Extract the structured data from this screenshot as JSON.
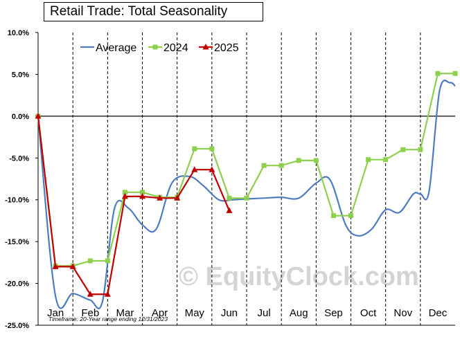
{
  "chart_data": {
    "type": "line",
    "title": "Retail Trade: Total Seasonality",
    "xlabel": "",
    "ylabel": "",
    "ylim": [
      -25,
      10
    ],
    "yticks": [
      "10.0%",
      "5.0%",
      "0.0%",
      "-5.0%",
      "-10.0%",
      "-15.0%",
      "-20.0%",
      "-25.0%"
    ],
    "ytick_values": [
      10,
      5,
      0,
      -5,
      -10,
      -15,
      -20,
      -25
    ],
    "categories": [
      "Jan",
      "Feb",
      "Mar",
      "Apr",
      "May",
      "Jun",
      "Jul",
      "Aug",
      "Sep",
      "Oct",
      "Nov",
      "Dec"
    ],
    "grid": "vertical dashed at month boundaries; solid zero line",
    "legend": "top-left",
    "footnote": "Timeframe: 20-Year range ending 12/31/2023",
    "watermark": "© EquityClock.com",
    "series": [
      {
        "name": "Average",
        "color": "#4f7cbf",
        "marker": "none",
        "x": [
          0,
          0.5,
          1.0,
          1.5,
          1.85,
          2.2,
          2.6,
          3.0,
          3.4,
          3.85,
          4.35,
          4.75,
          5.2,
          5.6,
          6.0,
          6.5,
          7.0,
          7.5,
          8.0,
          8.4,
          8.85,
          9.2,
          9.6,
          10.0,
          10.4,
          10.8,
          11.0,
          11.25,
          11.55,
          11.85,
          12.0
        ],
        "values": [
          0,
          -21.5,
          -21.2,
          -22.0,
          -22.2,
          -11.0,
          -11.0,
          -13.0,
          -13.5,
          -8.0,
          -7.2,
          -8.3,
          -10.0,
          -10.0,
          -9.9,
          -9.8,
          -9.7,
          -9.8,
          -8.0,
          -7.6,
          -13.0,
          -14.3,
          -13.5,
          -11.2,
          -11.5,
          -9.3,
          -9.3,
          -9.0,
          3.0,
          4.0,
          3.6
        ]
      },
      {
        "name": "2024",
        "color": "#8dd04b",
        "marker": "square",
        "x": [
          0,
          0.5,
          1.0,
          1.5,
          2.0,
          2.5,
          3.0,
          3.5,
          4.0,
          4.5,
          5.0,
          5.5,
          6.0,
          6.5,
          7.0,
          7.5,
          8.0,
          8.5,
          9.0,
          9.5,
          10.0,
          10.5,
          11.0,
          11.5,
          12.0
        ],
        "values": [
          0,
          -17.9,
          -17.9,
          -17.3,
          -17.3,
          -9.1,
          -9.1,
          -9.7,
          -9.7,
          -3.9,
          -3.9,
          -9.8,
          -9.8,
          -5.9,
          -5.9,
          -5.3,
          -5.3,
          -11.9,
          -11.9,
          -5.2,
          -5.2,
          -4.0,
          -4.0,
          5.1,
          5.1
        ]
      },
      {
        "name": "2025",
        "color": "#c00000",
        "marker": "triangle",
        "x": [
          0,
          0.5,
          1.0,
          1.5,
          2.0,
          2.5,
          3.0,
          3.5,
          4.0,
          4.5,
          5.0,
          5.5
        ],
        "values": [
          0,
          -18.0,
          -18.0,
          -21.3,
          -21.3,
          -9.6,
          -9.6,
          -9.8,
          -9.8,
          -6.4,
          -6.4,
          -11.3
        ]
      }
    ]
  }
}
